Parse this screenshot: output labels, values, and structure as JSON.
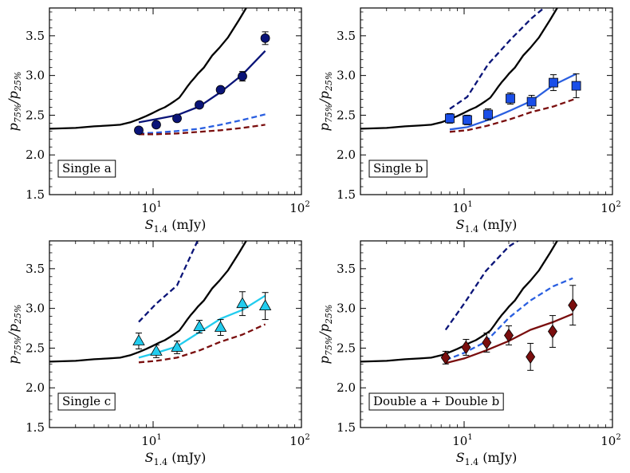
{
  "chart_data": [
    {
      "type": "line",
      "panel_label": "Single a",
      "xlabel": "S",
      "xlabel_sub": "1.4",
      "xlabel_unit": " (mJy)",
      "ylabel": "p",
      "ylabel_sub1": "75%",
      "ylabel_mid": "/p",
      "ylabel_sub2": "25%",
      "xlim": [
        2,
        100
      ],
      "ylim": [
        1.5,
        3.85
      ],
      "xscale": "log",
      "x_major_ticks": [
        {
          "v": 10,
          "base": "10",
          "exp": "1"
        },
        {
          "v": 100,
          "base": "10",
          "exp": "2"
        }
      ],
      "y_ticks": [
        {
          "v": 1.5,
          "label": "1.5"
        },
        {
          "v": 2.0,
          "label": "2.0"
        },
        {
          "v": 2.5,
          "label": "2.5"
        },
        {
          "v": 3.0,
          "label": "3.0"
        },
        {
          "v": 3.5,
          "label": "3.5"
        }
      ],
      "series": [
        {
          "name": "black solid",
          "color": "#000000",
          "dash": "none",
          "x": [
            2,
            3,
            4,
            5,
            6,
            7,
            8,
            9,
            10,
            11,
            12,
            13,
            14,
            15,
            16,
            17,
            18,
            19,
            20,
            22,
            25,
            28,
            32,
            38,
            44
          ],
          "y": [
            2.33,
            2.34,
            2.36,
            2.37,
            2.38,
            2.41,
            2.45,
            2.49,
            2.53,
            2.57,
            2.6,
            2.64,
            2.68,
            2.72,
            2.79,
            2.86,
            2.92,
            2.97,
            3.02,
            3.1,
            3.25,
            3.35,
            3.48,
            3.7,
            3.9
          ]
        },
        {
          "name": "fit solid",
          "color": "#0a1478",
          "dash": "none",
          "x": [
            8,
            10.5,
            14.5,
            20.5,
            28.5,
            40,
            57
          ],
          "y": [
            2.41,
            2.45,
            2.5,
            2.61,
            2.79,
            3.01,
            3.31
          ]
        },
        {
          "name": "blue dashed",
          "color": "#2a5fe0",
          "dash": "7,4",
          "x": [
            8,
            10.5,
            14.5,
            20.5,
            28.5,
            40,
            57
          ],
          "y": [
            2.27,
            2.28,
            2.3,
            2.33,
            2.38,
            2.44,
            2.51
          ]
        },
        {
          "name": "red dashed",
          "color": "#7a0e0e",
          "dash": "7,4",
          "x": [
            8,
            10.5,
            14.5,
            20.5,
            28.5,
            40,
            57
          ],
          "y": [
            2.26,
            2.26,
            2.27,
            2.29,
            2.31,
            2.34,
            2.38
          ]
        }
      ],
      "points": {
        "marker": "circle",
        "color": "#0a1478",
        "x": [
          8,
          10.5,
          14.5,
          20.5,
          28.5,
          40,
          57
        ],
        "y": [
          2.31,
          2.38,
          2.46,
          2.63,
          2.82,
          2.99,
          3.47
        ],
        "err": [
          0.03,
          0.04,
          0.03,
          0.03,
          0.04,
          0.06,
          0.08
        ]
      }
    },
    {
      "type": "line",
      "panel_label": "Single b",
      "xlabel": "S",
      "xlabel_sub": "1.4",
      "xlabel_unit": " (mJy)",
      "ylabel": "p",
      "ylabel_sub1": "75%",
      "ylabel_mid": "/p",
      "ylabel_sub2": "25%",
      "xlim": [
        2,
        100
      ],
      "ylim": [
        1.5,
        3.85
      ],
      "xscale": "log",
      "x_major_ticks": [
        {
          "v": 10,
          "base": "10",
          "exp": "1"
        },
        {
          "v": 100,
          "base": "10",
          "exp": "2"
        }
      ],
      "y_ticks": [
        {
          "v": 1.5,
          "label": "1.5"
        },
        {
          "v": 2.0,
          "label": "2.0"
        },
        {
          "v": 2.5,
          "label": "2.5"
        },
        {
          "v": 3.0,
          "label": "3.0"
        },
        {
          "v": 3.5,
          "label": "3.5"
        }
      ],
      "series": [
        {
          "name": "black solid",
          "color": "#000000",
          "dash": "none",
          "x": [
            2,
            3,
            4,
            5,
            6,
            7,
            8,
            9,
            10,
            11,
            12,
            13,
            14,
            15,
            16,
            17,
            18,
            19,
            20,
            22,
            25,
            28,
            32,
            38,
            44
          ],
          "y": [
            2.33,
            2.34,
            2.36,
            2.37,
            2.38,
            2.41,
            2.45,
            2.49,
            2.53,
            2.57,
            2.6,
            2.64,
            2.68,
            2.72,
            2.79,
            2.86,
            2.92,
            2.97,
            3.02,
            3.1,
            3.25,
            3.35,
            3.48,
            3.7,
            3.9
          ]
        },
        {
          "name": "navy dashed",
          "color": "#0a1478",
          "dash": "7,4",
          "x": [
            8,
            10.5,
            14.5,
            20.5,
            28.5,
            40
          ],
          "y": [
            2.58,
            2.73,
            3.14,
            3.45,
            3.72,
            3.95
          ]
        },
        {
          "name": "fit solid",
          "color": "#2a5fe0",
          "dash": "none",
          "x": [
            8,
            10.5,
            14.5,
            20.5,
            28.5,
            40,
            57
          ],
          "y": [
            2.32,
            2.35,
            2.44,
            2.56,
            2.68,
            2.88,
            3.02
          ]
        },
        {
          "name": "red dashed",
          "color": "#7a0e0e",
          "dash": "7,4",
          "x": [
            8,
            10.5,
            14.5,
            20.5,
            28.5,
            40,
            57
          ],
          "y": [
            2.29,
            2.31,
            2.37,
            2.45,
            2.54,
            2.61,
            2.71
          ]
        }
      ],
      "points": {
        "marker": "square",
        "color": "#1a4ee8",
        "x": [
          8,
          10.5,
          14.5,
          20.5,
          28.5,
          40,
          57
        ],
        "y": [
          2.46,
          2.44,
          2.51,
          2.71,
          2.67,
          2.91,
          2.87
        ]
      },
      "err": [
        0.06,
        0.06,
        0.07,
        0.07,
        0.08,
        0.1,
        0.15
      ]
    },
    {
      "type": "line",
      "panel_label": "Single c",
      "xlabel": "S",
      "xlabel_sub": "1.4",
      "xlabel_unit": " (mJy)",
      "ylabel": "p",
      "ylabel_sub1": "75%",
      "ylabel_mid": "/p",
      "ylabel_sub2": "25%",
      "xlim": [
        2,
        100
      ],
      "ylim": [
        1.5,
        3.85
      ],
      "xscale": "log",
      "x_major_ticks": [
        {
          "v": 10,
          "base": "10",
          "exp": "1"
        },
        {
          "v": 100,
          "base": "10",
          "exp": "2"
        }
      ],
      "y_ticks": [
        {
          "v": 1.5,
          "label": "1.5"
        },
        {
          "v": 2.0,
          "label": "2.0"
        },
        {
          "v": 2.5,
          "label": "2.5"
        },
        {
          "v": 3.0,
          "label": "3.0"
        },
        {
          "v": 3.5,
          "label": "3.5"
        }
      ],
      "series": [
        {
          "name": "black solid",
          "color": "#000000",
          "dash": "none",
          "x": [
            2,
            3,
            4,
            5,
            6,
            7,
            8,
            9,
            10,
            11,
            12,
            13,
            14,
            15,
            16,
            17,
            18,
            19,
            20,
            22,
            25,
            28,
            32,
            38,
            44
          ],
          "y": [
            2.33,
            2.34,
            2.36,
            2.37,
            2.38,
            2.41,
            2.45,
            2.49,
            2.53,
            2.57,
            2.6,
            2.64,
            2.68,
            2.72,
            2.79,
            2.86,
            2.92,
            2.97,
            3.02,
            3.1,
            3.25,
            3.35,
            3.48,
            3.7,
            3.9
          ]
        },
        {
          "name": "navy dashed",
          "color": "#0a1478",
          "dash": "7,4",
          "x": [
            8,
            10.5,
            14.5,
            20.5
          ],
          "y": [
            2.83,
            3.06,
            3.29,
            3.9
          ]
        },
        {
          "name": "fit solid",
          "color": "#22ccee",
          "dash": "none",
          "x": [
            8,
            10.5,
            14.5,
            20.5,
            28.5,
            40,
            57
          ],
          "y": [
            2.38,
            2.44,
            2.52,
            2.7,
            2.87,
            2.98,
            3.16
          ]
        },
        {
          "name": "red dashed",
          "color": "#7a0e0e",
          "dash": "7,4",
          "x": [
            8,
            10.5,
            14.5,
            20.5,
            28.5,
            40,
            57
          ],
          "y": [
            2.32,
            2.34,
            2.38,
            2.47,
            2.58,
            2.67,
            2.8
          ]
        }
      ],
      "points": {
        "marker": "triangle",
        "color": "#22ccee",
        "x": [
          8,
          10.5,
          14.5,
          20.5,
          28.5,
          40,
          57
        ],
        "y": [
          2.59,
          2.46,
          2.51,
          2.77,
          2.76,
          3.06,
          3.03
        ],
        "err": [
          0.1,
          0.08,
          0.08,
          0.08,
          0.1,
          0.15,
          0.17
        ]
      }
    },
    {
      "type": "line",
      "panel_label": "Double a + Double b",
      "xlabel": "S",
      "xlabel_sub": "1.4",
      "xlabel_unit": " (mJy)",
      "ylabel": "p",
      "ylabel_sub1": "75%",
      "ylabel_mid": "/p",
      "ylabel_sub2": "25%",
      "xlim": [
        2,
        100
      ],
      "ylim": [
        1.5,
        3.85
      ],
      "xscale": "log",
      "x_major_ticks": [
        {
          "v": 10,
          "base": "10",
          "exp": "1"
        },
        {
          "v": 100,
          "base": "10",
          "exp": "2"
        }
      ],
      "y_ticks": [
        {
          "v": 1.5,
          "label": "1.5"
        },
        {
          "v": 2.0,
          "label": "2.0"
        },
        {
          "v": 2.5,
          "label": "2.5"
        },
        {
          "v": 3.0,
          "label": "3.0"
        },
        {
          "v": 3.5,
          "label": "3.5"
        }
      ],
      "series": [
        {
          "name": "black solid",
          "color": "#000000",
          "dash": "none",
          "x": [
            2,
            3,
            4,
            5,
            6,
            7,
            8,
            9,
            10,
            11,
            12,
            13,
            14,
            15,
            16,
            17,
            18,
            19,
            20,
            22,
            25,
            28,
            32,
            38,
            44
          ],
          "y": [
            2.33,
            2.34,
            2.36,
            2.37,
            2.38,
            2.41,
            2.45,
            2.49,
            2.53,
            2.57,
            2.6,
            2.64,
            2.68,
            2.72,
            2.79,
            2.86,
            2.92,
            2.97,
            3.02,
            3.1,
            3.25,
            3.35,
            3.48,
            3.7,
            3.9
          ]
        },
        {
          "name": "navy dashed",
          "color": "#0a1478",
          "dash": "7,4",
          "x": [
            7.5,
            10,
            14,
            20,
            28
          ],
          "y": [
            2.73,
            3.06,
            3.47,
            3.78,
            3.95
          ]
        },
        {
          "name": "blue dashed",
          "color": "#2a5fe0",
          "dash": "7,4",
          "x": [
            7.5,
            10,
            14,
            20,
            28,
            40,
            54
          ],
          "y": [
            2.35,
            2.44,
            2.58,
            2.88,
            3.1,
            3.28,
            3.38
          ]
        },
        {
          "name": "fit solid",
          "color": "#7a0e0e",
          "dash": "none",
          "x": [
            7.5,
            10,
            14,
            20,
            28,
            40,
            54
          ],
          "y": [
            2.31,
            2.37,
            2.47,
            2.59,
            2.73,
            2.83,
            2.93
          ]
        }
      ],
      "points": {
        "marker": "diamond",
        "color": "#7a0e0e",
        "x": [
          7.5,
          10.3,
          14.2,
          20,
          28,
          39.5,
          54
        ],
        "y": [
          2.38,
          2.51,
          2.57,
          2.66,
          2.39,
          2.71,
          3.04
        ],
        "err": [
          0.08,
          0.1,
          0.12,
          0.12,
          0.17,
          0.2,
          0.25
        ]
      }
    }
  ]
}
